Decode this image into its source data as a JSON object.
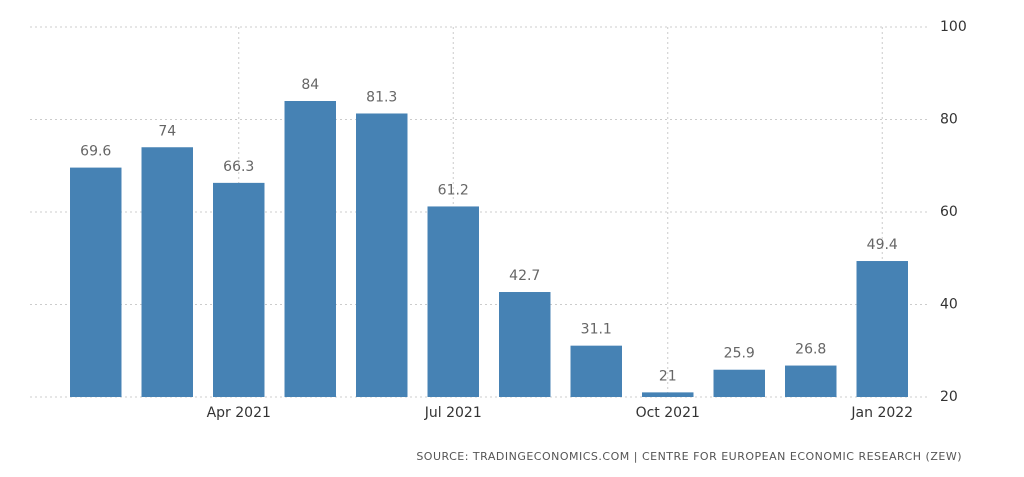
{
  "chart_data": {
    "type": "bar",
    "categories": [
      null,
      null,
      "Apr 2021",
      null,
      null,
      "Jul 2021",
      null,
      null,
      "Oct 2021",
      null,
      null,
      "Jan 2022"
    ],
    "values": [
      69.6,
      74,
      66.3,
      84,
      81.3,
      61.2,
      42.7,
      31.1,
      21,
      25.9,
      26.8,
      49.4
    ],
    "color": "#4682b4",
    "ylim": [
      20,
      100
    ],
    "yticks": [
      20,
      40,
      60,
      80,
      100
    ],
    "grid": true,
    "source": "SOURCE: TRADINGECONOMICS.COM | CENTRE FOR EUROPEAN ECONOMIC RESEARCH (ZEW)"
  }
}
